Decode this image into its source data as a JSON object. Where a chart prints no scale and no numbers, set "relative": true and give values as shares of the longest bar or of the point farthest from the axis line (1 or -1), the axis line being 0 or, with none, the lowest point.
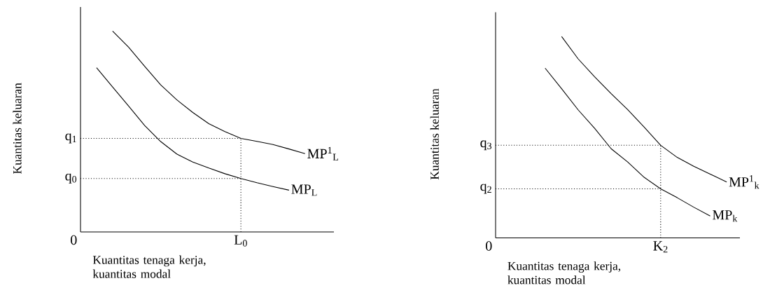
{
  "chart_data": [
    {
      "type": "line",
      "relative": true,
      "xlabel": "Kuantitas tenaga kerja, kuantitas modal",
      "ylabel": "Kuantitas keluaran",
      "annotations": [
        "0",
        "L$_{0}$"
      ],
      "categories": [
        null,
        null,
        null,
        null,
        null,
        null,
        null,
        null,
        null,
        null,
        null,
        null,
        null,
        null,
        null,
        null
      ],
      "series": [
        {
          "name": "MP$^{1}$$_{L}$",
          "color": "#000000",
          "values": [
            null,
            null,
            1,
            0.92,
            0.825,
            0.732,
            0.658,
            0.595,
            0.539,
            0.5,
            0.466,
            0.451,
            0.435,
            0.413,
            0.39,
            null
          ]
        },
        {
          "name": "MP$_{L}$",
          "color": "#000000",
          "values": [
            null,
            0.818,
            0.722,
            0.627,
            0.53,
            0.45,
            0.388,
            0.348,
            0.318,
            0.29,
            0.266,
            0.245,
            0.226,
            0.208,
            null,
            null
          ]
        }
      ],
      "ref_lines": [
        {
          "axis": "y",
          "value": 0.466,
          "label": "q$_{1}$",
          "line_style": "dotted",
          "color": "#000000"
        },
        {
          "axis": "y",
          "value": 0.266,
          "label": "q$_{0}$",
          "line_style": "dotted",
          "color": "#000000"
        }
      ]
    },
    {
      "type": "line",
      "relative": true,
      "xlabel": "Kuantitas tenaga kerja, kuantitas modal",
      "ylabel": "Kuantitas keluaran",
      "annotations": [
        "0",
        "K$_{2}$"
      ],
      "categories": [
        null,
        null,
        null,
        null,
        null,
        null,
        null,
        null,
        null,
        null,
        null,
        null,
        null,
        null,
        null
      ],
      "series": [
        {
          "name": "MP$^{1}$$_{k}$",
          "color": "#000000",
          "values": [
            null,
            null,
            null,
            null,
            1,
            0.889,
            0.8,
            0.716,
            0.637,
            0.55,
            0.46,
            0.4,
            0.356,
            0.317,
            0.278
          ]
        },
        {
          "name": "MP$_{k}$",
          "color": "#000000",
          "values": [
            null,
            null,
            null,
            0.843,
            0.741,
            0.636,
            0.544,
            0.443,
            0.377,
            0.301,
            0.244,
            0.2,
            0.153,
            0.109,
            null
          ]
        }
      ],
      "ref_lines": [
        {
          "axis": "y",
          "value": 0.46,
          "label": "q$_{3}$",
          "line_style": "dotted",
          "color": "#000000"
        },
        {
          "axis": "y",
          "value": 0.244,
          "label": "q$_{2}$",
          "line_style": "dotted",
          "color": "#000000"
        }
      ]
    }
  ]
}
